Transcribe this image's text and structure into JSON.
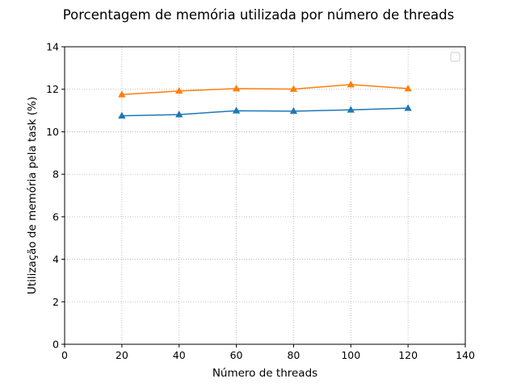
{
  "chart_data": {
    "type": "line",
    "title": "Porcentagem de memória utilizada por número de threads",
    "xlabel": "Número de threads",
    "ylabel": "Utilização de memória pela task (%)",
    "xlim": [
      0,
      140
    ],
    "ylim": [
      0,
      14
    ],
    "xticks": [
      0,
      20,
      40,
      60,
      80,
      100,
      120,
      140
    ],
    "yticks": [
      0,
      2,
      4,
      6,
      8,
      10,
      12,
      14
    ],
    "grid": true,
    "legend": "top-right",
    "x": [
      20,
      40,
      60,
      80,
      100,
      120
    ],
    "series": [
      {
        "name": "",
        "color": "#1f77b4",
        "marker": "triangle-up",
        "values": [
          10.75,
          10.81,
          10.99,
          10.97,
          11.03,
          11.11
        ]
      },
      {
        "name": "",
        "color": "#ff7f0e",
        "marker": "triangle-up",
        "values": [
          11.75,
          11.92,
          12.03,
          12.01,
          12.22,
          12.03
        ]
      }
    ]
  }
}
